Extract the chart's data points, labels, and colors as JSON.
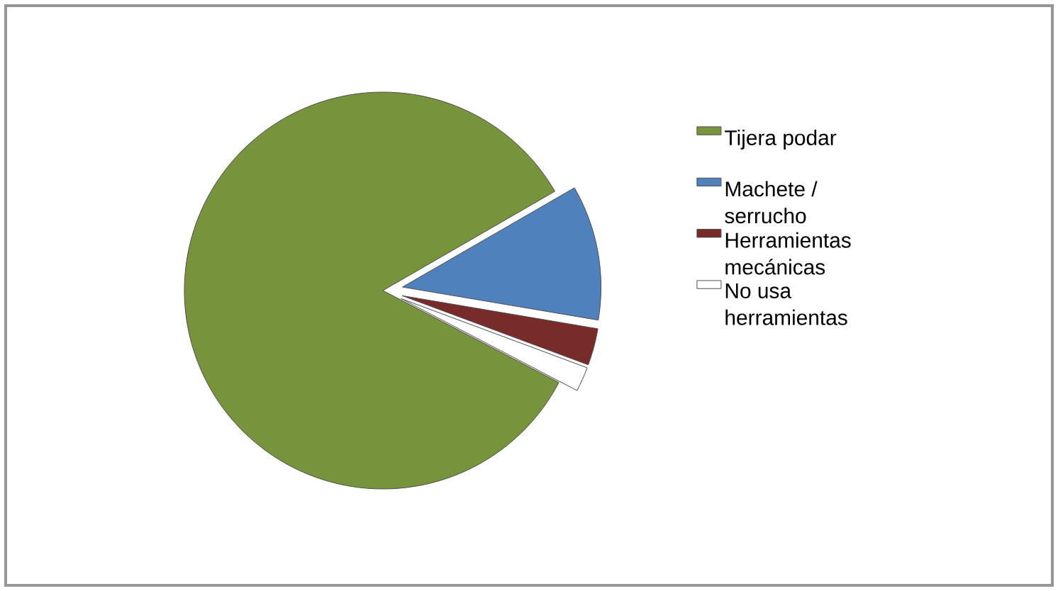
{
  "chart_data": {
    "type": "pie",
    "categories": [
      "Tijera podar",
      "Machete / serrucho",
      "Herramientas mecánicas",
      "No usa herramientas"
    ],
    "values": [
      84,
      11,
      3,
      2
    ],
    "colors": [
      "#77933c",
      "#4f81bd",
      "#772c2a",
      "#ffffff"
    ],
    "legend": "right"
  }
}
